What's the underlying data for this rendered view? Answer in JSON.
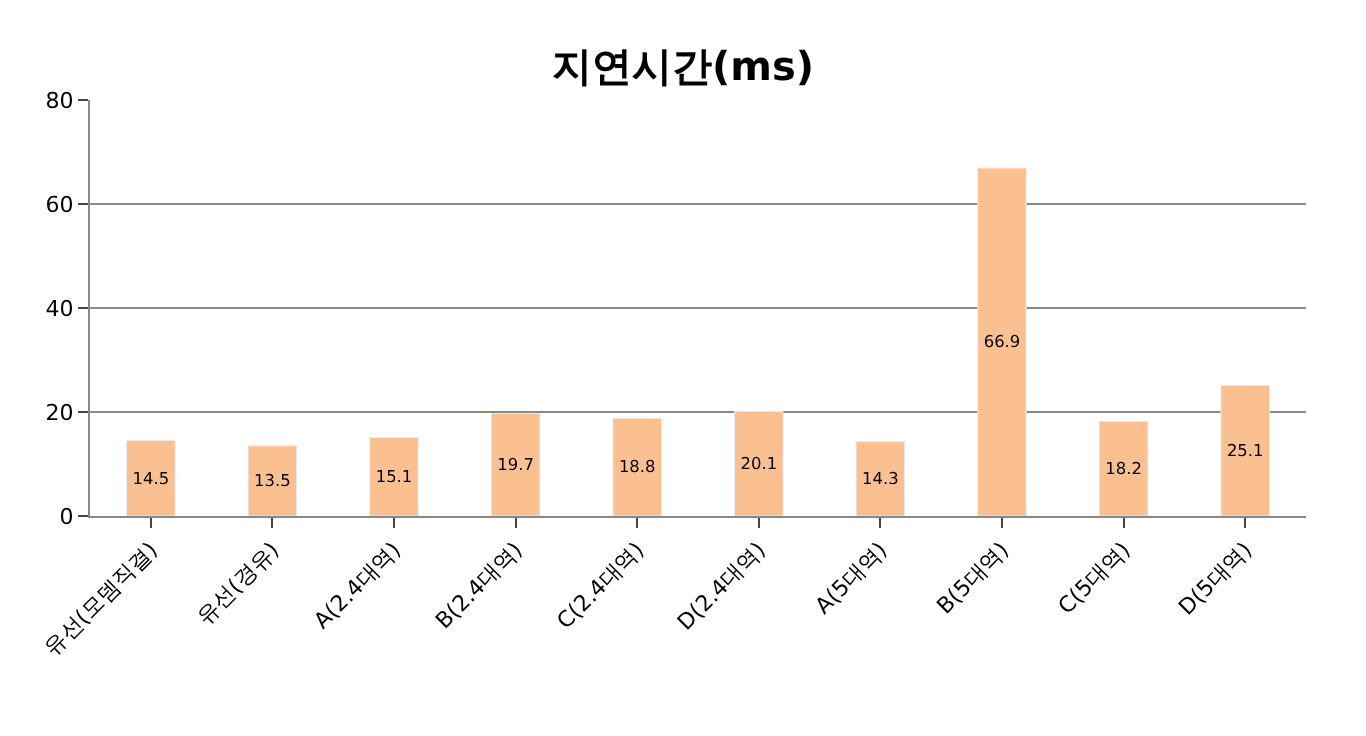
{
  "chart_data": {
    "type": "bar",
    "title": "지연시간(ms)",
    "categories": [
      "유선(모뎀직결)",
      "유선(경유)",
      "A(2.4대역)",
      "B(2.4대역)",
      "C(2.4대역)",
      "D(2.4대역)",
      "A(5대역)",
      "B(5대역)",
      "C(5대역)",
      "D(5대역)"
    ],
    "values": [
      14.5,
      13.5,
      15.1,
      19.7,
      18.8,
      20.1,
      14.3,
      66.9,
      18.2,
      25.1
    ],
    "color": "#fac090",
    "ylim": [
      0,
      80
    ],
    "yticks": [
      0,
      20,
      40,
      60,
      80
    ],
    "grid": "y",
    "data_labels": true
  }
}
